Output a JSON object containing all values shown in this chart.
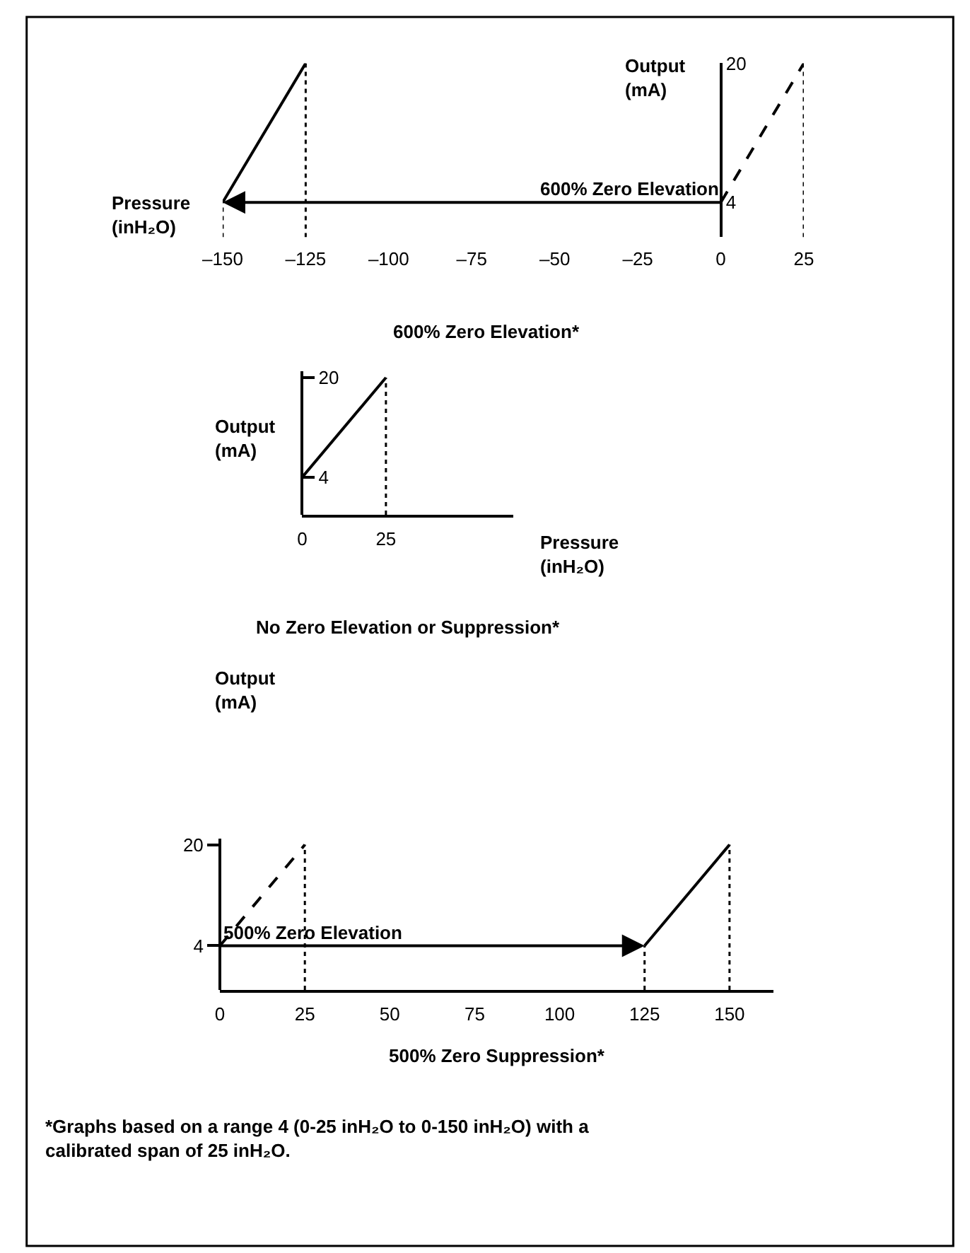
{
  "chart_data": [
    {
      "type": "line",
      "title": "600% Zero Elevation*",
      "xlabel": "Pressure (inH₂O)",
      "ylabel": "Output (mA)",
      "series": [
        {
          "color": "#000000",
          "x": [
            -150,
            -125
          ],
          "values": [
            4,
            20
          ],
          "line_style": "solid"
        },
        {
          "color": "#000000",
          "x": [
            0,
            25
          ],
          "values": [
            4,
            20
          ],
          "line_style": "dashed"
        }
      ],
      "annotations": [
        {
          "text": "600% Zero Elevation",
          "x": -150,
          "y": 4
        }
      ],
      "ref_lines": [
        {
          "axis": "x",
          "value": -150,
          "line_style": "dotted"
        },
        {
          "axis": "x",
          "value": -125,
          "line_style": "dotted"
        },
        {
          "axis": "x",
          "value": 25,
          "line_style": "dotted"
        }
      ],
      "xlim": [
        -150,
        25
      ],
      "xticks": [
        {
          "value": -150,
          "label": "–150"
        },
        {
          "value": -125,
          "label": "–125"
        },
        {
          "value": -100,
          "label": "–100"
        },
        {
          "value": -75,
          "label": "–75"
        },
        {
          "value": -50,
          "label": "–50"
        },
        {
          "value": -25,
          "label": "–25"
        },
        0,
        25
      ],
      "ylim": [
        0,
        20
      ],
      "yticks": [
        4,
        20
      ]
    },
    {
      "type": "line",
      "title": "No Zero Elevation or Suppression*",
      "xlabel": "Pressure (inH₂O)",
      "ylabel": "Output (mA)",
      "series": [
        {
          "color": "#000000",
          "x": [
            0,
            25
          ],
          "values": [
            4,
            20
          ],
          "line_style": "solid"
        }
      ],
      "ref_lines": [
        {
          "axis": "x",
          "value": 25,
          "line_style": "dotted"
        }
      ],
      "xlim": [
        0,
        63
      ],
      "xticks": [
        0,
        25
      ],
      "ylim": [
        -2,
        21
      ],
      "yticks": [
        4,
        20
      ]
    },
    {
      "type": "line",
      "title": "500% Zero Suppression*",
      "ylabel": "Output (mA)",
      "series": [
        {
          "color": "#000000",
          "x": [
            0,
            25
          ],
          "values": [
            4,
            20
          ],
          "line_style": "dashed"
        },
        {
          "color": "#000000",
          "x": [
            125,
            150
          ],
          "values": [
            4,
            20
          ],
          "line_style": "solid"
        }
      ],
      "annotations": [
        {
          "text": "500% Zero Elevation",
          "x": 125,
          "y": 4
        },
        "*Graphs based on a range 4 (0-25 inH₂O to 0-150 inH₂O) with a calibrated span of 25 inH₂O."
      ],
      "ref_lines": [
        {
          "axis": "x",
          "value": 25,
          "line_style": "dotted"
        },
        {
          "axis": "x",
          "value": 125,
          "line_style": "dotted"
        },
        {
          "axis": "x",
          "value": 150,
          "line_style": "dotted"
        }
      ],
      "xlim": [
        0,
        163
      ],
      "xticks": [
        0,
        25,
        50,
        75,
        100,
        125,
        150
      ],
      "ylim": [
        -3,
        21
      ],
      "yticks": [
        4,
        20
      ]
    }
  ]
}
